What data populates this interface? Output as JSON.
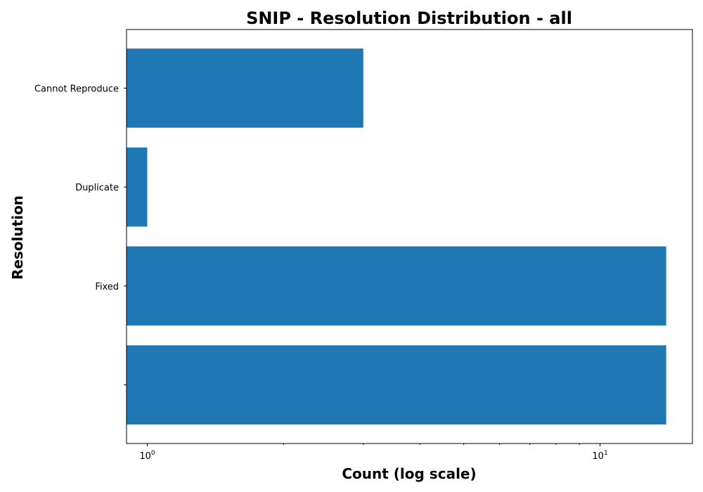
{
  "chart_data": {
    "type": "bar",
    "orientation": "horizontal",
    "title": "SNIP - Resolution Distribution - all",
    "xlabel": "Count (log scale)",
    "ylabel": "Resolution",
    "x_scale": "log",
    "xlim": [
      0.9,
      16
    ],
    "x_ticks": [
      {
        "value": 1,
        "label_base": "10",
        "label_exp": "0"
      },
      {
        "value": 10,
        "label_base": "10",
        "label_exp": "1"
      }
    ],
    "categories": [
      "",
      "Fixed",
      "Duplicate",
      "Cannot Reproduce"
    ],
    "values": [
      14,
      14,
      1,
      3
    ],
    "bar_color": "#1f77b4",
    "grid": false,
    "legend": "none"
  }
}
